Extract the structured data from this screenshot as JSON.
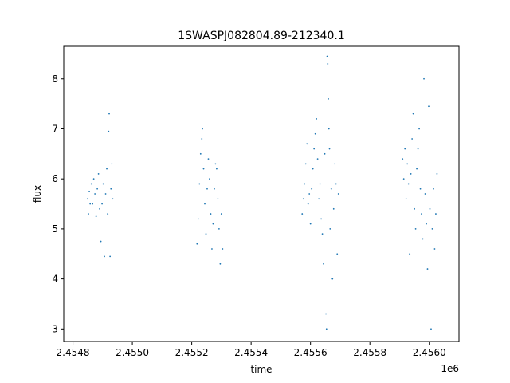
{
  "chart_data": {
    "type": "scatter",
    "title": "1SWASPJ082804.89-212340.1",
    "xlabel": "time",
    "ylabel": "flux",
    "x_offset_label": "1e6",
    "xlim": [
      2454769,
      2456100
    ],
    "ylim": [
      2.75,
      8.65
    ],
    "x_ticks": [
      2454800,
      2455000,
      2455200,
      2455400,
      2455600,
      2455800,
      2456000
    ],
    "x_tick_labels": [
      "2.4548",
      "2.4550",
      "2.4552",
      "2.4554",
      "2.4556",
      "2.4558",
      "2.4560"
    ],
    "y_ticks": [
      3,
      4,
      5,
      6,
      7,
      8
    ],
    "y_tick_labels": [
      "3",
      "4",
      "5",
      "6",
      "7",
      "8"
    ],
    "grid": false,
    "legend": "none",
    "marker_color": "#1f77b4",
    "series": [
      {
        "values": [
          [
            2454849,
            5.6
          ],
          [
            2454852,
            5.3
          ],
          [
            2454855,
            5.75
          ],
          [
            2454858,
            5.5
          ],
          [
            2454862,
            5.9
          ],
          [
            2454866,
            5.5
          ],
          [
            2454870,
            6.0
          ],
          [
            2454874,
            5.7
          ],
          [
            2454878,
            5.25
          ],
          [
            2454882,
            5.8
          ],
          [
            2454886,
            6.1
          ],
          [
            2454890,
            5.4
          ],
          [
            2454894,
            4.75
          ],
          [
            2454898,
            5.5
          ],
          [
            2454902,
            5.9
          ],
          [
            2454906,
            4.45
          ],
          [
            2454910,
            5.7
          ],
          [
            2454914,
            6.2
          ],
          [
            2454917,
            5.3
          ],
          [
            2454920,
            6.95
          ],
          [
            2454922,
            7.3
          ],
          [
            2454925,
            4.45
          ],
          [
            2454928,
            5.8
          ],
          [
            2454931,
            6.3
          ],
          [
            2454934,
            5.6
          ],
          [
            2455218,
            4.7
          ],
          [
            2455222,
            5.2
          ],
          [
            2455226,
            5.9
          ],
          [
            2455230,
            6.5
          ],
          [
            2455234,
            6.8
          ],
          [
            2455236,
            7.0
          ],
          [
            2455240,
            6.2
          ],
          [
            2455244,
            5.5
          ],
          [
            2455248,
            4.9
          ],
          [
            2455252,
            5.8
          ],
          [
            2455256,
            6.4
          ],
          [
            2455260,
            6.0
          ],
          [
            2455264,
            5.3
          ],
          [
            2455268,
            4.6
          ],
          [
            2455272,
            5.1
          ],
          [
            2455276,
            5.8
          ],
          [
            2455280,
            6.3
          ],
          [
            2455284,
            6.2
          ],
          [
            2455288,
            5.6
          ],
          [
            2455292,
            5.0
          ],
          [
            2455296,
            4.3
          ],
          [
            2455300,
            5.3
          ],
          [
            2455304,
            4.6
          ],
          [
            2455572,
            5.3
          ],
          [
            2455576,
            5.6
          ],
          [
            2455580,
            5.9
          ],
          [
            2455584,
            6.3
          ],
          [
            2455588,
            6.7
          ],
          [
            2455592,
            5.5
          ],
          [
            2455596,
            5.7
          ],
          [
            2455600,
            5.1
          ],
          [
            2455604,
            5.8
          ],
          [
            2455608,
            6.2
          ],
          [
            2455612,
            6.6
          ],
          [
            2455616,
            6.9
          ],
          [
            2455620,
            7.2
          ],
          [
            2455624,
            6.4
          ],
          [
            2455628,
            5.6
          ],
          [
            2455632,
            5.9
          ],
          [
            2455636,
            5.2
          ],
          [
            2455640,
            4.9
          ],
          [
            2455644,
            4.3
          ],
          [
            2455648,
            6.5
          ],
          [
            2455652,
            3.3
          ],
          [
            2455654,
            3.0
          ],
          [
            2455656,
            8.45
          ],
          [
            2455658,
            8.3
          ],
          [
            2455660,
            7.6
          ],
          [
            2455662,
            7.0
          ],
          [
            2455664,
            6.6
          ],
          [
            2455666,
            5.0
          ],
          [
            2455670,
            5.8
          ],
          [
            2455674,
            4.0
          ],
          [
            2455678,
            5.4
          ],
          [
            2455682,
            6.3
          ],
          [
            2455686,
            5.9
          ],
          [
            2455690,
            4.5
          ],
          [
            2455694,
            5.7
          ],
          [
            2455910,
            6.4
          ],
          [
            2455914,
            6.0
          ],
          [
            2455918,
            6.6
          ],
          [
            2455922,
            5.6
          ],
          [
            2455926,
            6.3
          ],
          [
            2455930,
            5.9
          ],
          [
            2455934,
            4.5
          ],
          [
            2455938,
            6.1
          ],
          [
            2455942,
            6.8
          ],
          [
            2455946,
            7.3
          ],
          [
            2455950,
            5.4
          ],
          [
            2455954,
            5.0
          ],
          [
            2455958,
            6.2
          ],
          [
            2455962,
            6.6
          ],
          [
            2455966,
            7.0
          ],
          [
            2455970,
            5.8
          ],
          [
            2455974,
            5.3
          ],
          [
            2455978,
            4.8
          ],
          [
            2455982,
            8.0
          ],
          [
            2455986,
            5.7
          ],
          [
            2455990,
            5.1
          ],
          [
            2455994,
            4.2
          ],
          [
            2455998,
            7.45
          ],
          [
            2456002,
            5.4
          ],
          [
            2456006,
            3.0
          ],
          [
            2456010,
            5.0
          ],
          [
            2456014,
            5.8
          ],
          [
            2456018,
            4.6
          ],
          [
            2456022,
            5.3
          ],
          [
            2456026,
            6.1
          ]
        ]
      }
    ]
  }
}
